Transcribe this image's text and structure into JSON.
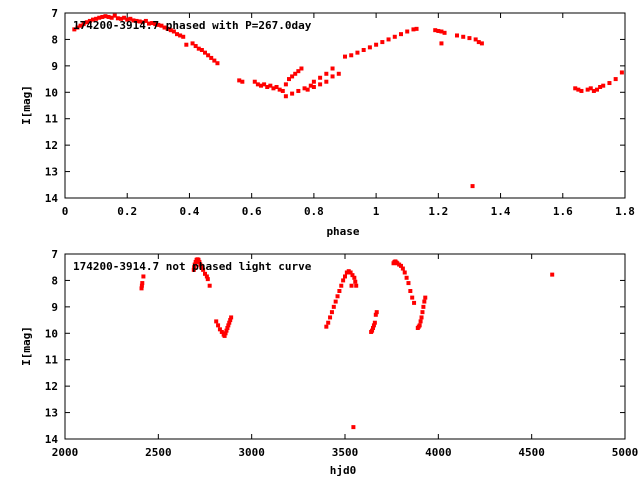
{
  "chart_data": [
    {
      "type": "scatter",
      "title": "174200-3914.7 phased with P=267.0day",
      "xlabel": "phase",
      "ylabel": "I[mag]",
      "xlim": [
        0,
        1.8
      ],
      "ylim": [
        7,
        14
      ],
      "y_inverted": true,
      "grid": false,
      "x_ticks": [
        "0",
        "0.2",
        "0.4",
        "0.6",
        "0.8",
        "1",
        "1.2",
        "1.4",
        "1.6",
        "1.8"
      ],
      "y_ticks": [
        "7",
        "8",
        "9",
        "10",
        "11",
        "12",
        "13",
        "14"
      ],
      "color": "#ff0000",
      "points": [
        [
          0.03,
          7.62
        ],
        [
          0.04,
          7.55
        ],
        [
          0.05,
          7.48
        ],
        [
          0.06,
          7.42
        ],
        [
          0.07,
          7.35
        ],
        [
          0.08,
          7.3
        ],
        [
          0.09,
          7.25
        ],
        [
          0.1,
          7.22
        ],
        [
          0.11,
          7.18
        ],
        [
          0.12,
          7.15
        ],
        [
          0.13,
          7.12
        ],
        [
          0.14,
          7.15
        ],
        [
          0.15,
          7.18
        ],
        [
          0.16,
          7.1
        ],
        [
          0.17,
          7.2
        ],
        [
          0.18,
          7.22
        ],
        [
          0.19,
          7.18
        ],
        [
          0.2,
          7.25
        ],
        [
          0.21,
          7.22
        ],
        [
          0.22,
          7.28
        ],
        [
          0.23,
          7.3
        ],
        [
          0.24,
          7.32
        ],
        [
          0.25,
          7.35
        ],
        [
          0.26,
          7.3
        ],
        [
          0.27,
          7.4
        ],
        [
          0.28,
          7.38
        ],
        [
          0.29,
          7.42
        ],
        [
          0.3,
          7.45
        ],
        [
          0.31,
          7.48
        ],
        [
          0.32,
          7.55
        ],
        [
          0.33,
          7.6
        ],
        [
          0.34,
          7.65
        ],
        [
          0.35,
          7.7
        ],
        [
          0.36,
          7.8
        ],
        [
          0.37,
          7.85
        ],
        [
          0.38,
          7.9
        ],
        [
          0.39,
          8.2
        ],
        [
          0.41,
          8.15
        ],
        [
          0.42,
          8.25
        ],
        [
          0.43,
          8.35
        ],
        [
          0.44,
          8.4
        ],
        [
          0.45,
          8.5
        ],
        [
          0.46,
          8.6
        ],
        [
          0.47,
          8.7
        ],
        [
          0.48,
          8.8
        ],
        [
          0.49,
          8.9
        ],
        [
          0.56,
          9.55
        ],
        [
          0.57,
          9.6
        ],
        [
          0.61,
          9.6
        ],
        [
          0.62,
          9.7
        ],
        [
          0.63,
          9.75
        ],
        [
          0.64,
          9.7
        ],
        [
          0.65,
          9.8
        ],
        [
          0.66,
          9.75
        ],
        [
          0.67,
          9.85
        ],
        [
          0.68,
          9.8
        ],
        [
          0.69,
          9.9
        ],
        [
          0.7,
          9.95
        ],
        [
          0.71,
          9.7
        ],
        [
          0.72,
          9.5
        ],
        [
          0.73,
          9.4
        ],
        [
          0.74,
          9.3
        ],
        [
          0.75,
          9.2
        ],
        [
          0.76,
          9.1
        ],
        [
          0.71,
          10.15
        ],
        [
          0.73,
          10.05
        ],
        [
          0.75,
          9.95
        ],
        [
          0.77,
          9.85
        ],
        [
          0.79,
          9.75
        ],
        [
          0.8,
          9.6
        ],
        [
          0.82,
          9.45
        ],
        [
          0.84,
          9.3
        ],
        [
          0.86,
          9.1
        ],
        [
          0.78,
          9.9
        ],
        [
          0.8,
          9.8
        ],
        [
          0.82,
          9.7
        ],
        [
          0.84,
          9.6
        ],
        [
          0.86,
          9.4
        ],
        [
          0.88,
          9.3
        ],
        [
          0.9,
          8.65
        ],
        [
          0.92,
          8.6
        ],
        [
          0.94,
          8.5
        ],
        [
          0.96,
          8.4
        ],
        [
          0.98,
          8.3
        ],
        [
          1.0,
          8.2
        ],
        [
          1.02,
          8.1
        ],
        [
          1.04,
          8.0
        ],
        [
          1.06,
          7.9
        ],
        [
          1.08,
          7.8
        ],
        [
          1.1,
          7.7
        ],
        [
          1.12,
          7.62
        ],
        [
          1.13,
          7.6
        ],
        [
          1.19,
          7.65
        ],
        [
          1.2,
          7.68
        ],
        [
          1.21,
          7.7
        ],
        [
          1.22,
          7.75
        ],
        [
          1.21,
          8.15
        ],
        [
          1.26,
          7.85
        ],
        [
          1.28,
          7.9
        ],
        [
          1.3,
          7.95
        ],
        [
          1.32,
          8.0
        ],
        [
          1.33,
          8.1
        ],
        [
          1.34,
          8.15
        ],
        [
          1.31,
          13.55
        ],
        [
          1.64,
          9.85
        ],
        [
          1.65,
          9.9
        ],
        [
          1.66,
          9.95
        ],
        [
          1.68,
          9.9
        ],
        [
          1.69,
          9.85
        ],
        [
          1.7,
          9.95
        ],
        [
          1.71,
          9.9
        ],
        [
          1.72,
          9.8
        ],
        [
          1.73,
          9.75
        ],
        [
          1.75,
          9.65
        ],
        [
          1.77,
          9.5
        ],
        [
          1.79,
          9.25
        ]
      ]
    },
    {
      "type": "scatter",
      "title": "174200-3914.7 not phased light curve",
      "xlabel": "hjd0",
      "ylabel": "I[mag]",
      "xlim": [
        2000,
        5000
      ],
      "ylim": [
        7,
        14
      ],
      "y_inverted": true,
      "grid": false,
      "x_ticks": [
        "2000",
        "2500",
        "3000",
        "3500",
        "4000",
        "4500",
        "5000"
      ],
      "y_ticks": [
        "7",
        "8",
        "9",
        "10",
        "11",
        "12",
        "13",
        "14"
      ],
      "color": "#ff0000",
      "points": [
        [
          2410,
          8.3
        ],
        [
          2412,
          8.2
        ],
        [
          2414,
          8.1
        ],
        [
          2420,
          7.85
        ],
        [
          2690,
          7.6
        ],
        [
          2692,
          7.5
        ],
        [
          2695,
          7.4
        ],
        [
          2700,
          7.3
        ],
        [
          2705,
          7.22
        ],
        [
          2710,
          7.2
        ],
        [
          2715,
          7.22
        ],
        [
          2720,
          7.3
        ],
        [
          2725,
          7.4
        ],
        [
          2730,
          7.5
        ],
        [
          2740,
          7.6
        ],
        [
          2750,
          7.75
        ],
        [
          2760,
          7.85
        ],
        [
          2765,
          7.95
        ],
        [
          2775,
          8.2
        ],
        [
          2810,
          9.55
        ],
        [
          2820,
          9.7
        ],
        [
          2830,
          9.85
        ],
        [
          2840,
          9.95
        ],
        [
          2850,
          10.05
        ],
        [
          2855,
          10.1
        ],
        [
          2860,
          10.0
        ],
        [
          2865,
          9.9
        ],
        [
          2870,
          9.8
        ],
        [
          2875,
          9.7
        ],
        [
          2880,
          9.6
        ],
        [
          2885,
          9.5
        ],
        [
          2890,
          9.4
        ],
        [
          3400,
          9.75
        ],
        [
          3410,
          9.6
        ],
        [
          3420,
          9.4
        ],
        [
          3430,
          9.2
        ],
        [
          3440,
          9.0
        ],
        [
          3450,
          8.8
        ],
        [
          3460,
          8.6
        ],
        [
          3470,
          8.4
        ],
        [
          3480,
          8.2
        ],
        [
          3490,
          8.0
        ],
        [
          3500,
          7.85
        ],
        [
          3510,
          7.7
        ],
        [
          3520,
          7.65
        ],
        [
          3530,
          7.7
        ],
        [
          3540,
          7.8
        ],
        [
          3535,
          8.2
        ],
        [
          3550,
          7.9
        ],
        [
          3555,
          8.05
        ],
        [
          3560,
          8.2
        ],
        [
          3545,
          13.55
        ],
        [
          3640,
          9.95
        ],
        [
          3645,
          9.9
        ],
        [
          3650,
          9.8
        ],
        [
          3655,
          9.7
        ],
        [
          3660,
          9.6
        ],
        [
          3665,
          9.3
        ],
        [
          3670,
          9.2
        ],
        [
          3760,
          7.35
        ],
        [
          3765,
          7.3
        ],
        [
          3770,
          7.28
        ],
        [
          3775,
          7.32
        ],
        [
          3780,
          7.35
        ],
        [
          3790,
          7.4
        ],
        [
          3800,
          7.45
        ],
        [
          3810,
          7.55
        ],
        [
          3820,
          7.7
        ],
        [
          3830,
          7.9
        ],
        [
          3840,
          8.1
        ],
        [
          3850,
          8.4
        ],
        [
          3860,
          8.65
        ],
        [
          3870,
          8.85
        ],
        [
          3890,
          9.8
        ],
        [
          3895,
          9.75
        ],
        [
          3900,
          9.7
        ],
        [
          3905,
          9.55
        ],
        [
          3910,
          9.4
        ],
        [
          3915,
          9.2
        ],
        [
          3920,
          9.0
        ],
        [
          3925,
          8.8
        ],
        [
          3930,
          8.65
        ],
        [
          4610,
          7.78
        ]
      ]
    }
  ]
}
